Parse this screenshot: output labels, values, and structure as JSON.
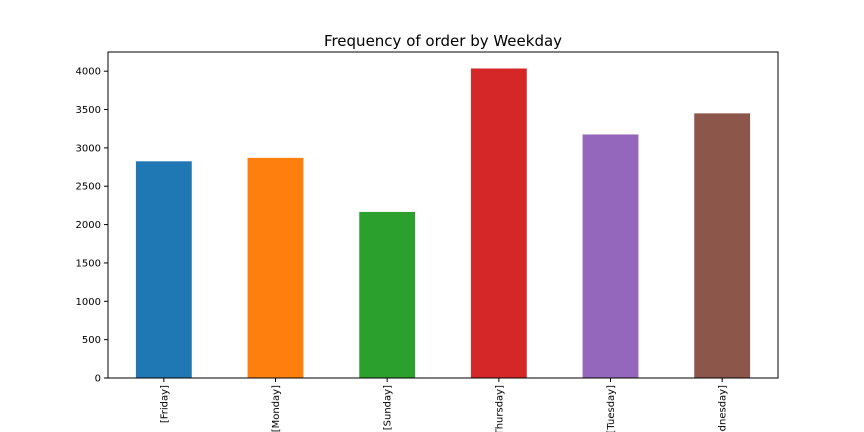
{
  "chart_data": {
    "type": "bar",
    "title": "Frequency of order by Weekday",
    "categories": [
      "[Friday]",
      "[Monday]",
      "[Sunday]",
      "[Thursday]",
      "[Tuesday]",
      "[Wednesday]"
    ],
    "values": [
      2825,
      2870,
      2165,
      4035,
      3175,
      3450
    ],
    "colors": [
      "#1f77b4",
      "#ff7f0e",
      "#2ca02c",
      "#d62728",
      "#9467bd",
      "#8c564b"
    ],
    "xlabel": "",
    "ylabel": "",
    "ylim": [
      0,
      4250
    ],
    "yticks": [
      0,
      500,
      1000,
      1500,
      2000,
      2500,
      3000,
      3500,
      4000
    ],
    "grid": false,
    "legend": false
  }
}
